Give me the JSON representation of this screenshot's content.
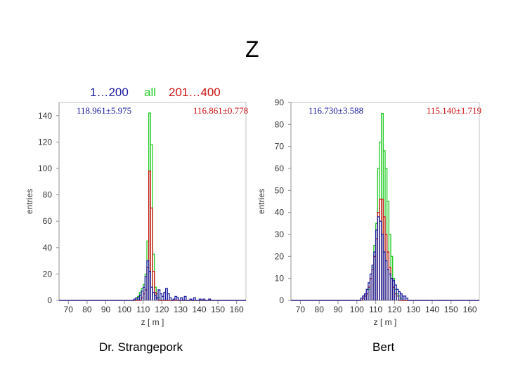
{
  "page": {
    "title": "Z"
  },
  "legend": {
    "blue": "1…200",
    "green": "all",
    "red": "201…400"
  },
  "colors": {
    "blue": "#1a1aa0",
    "green": "#22cc22",
    "red": "#cc1111",
    "axis": "#909090",
    "label": "#333333"
  },
  "chart_data": [
    {
      "type": "histogram",
      "caption": "Dr. Strangepork",
      "xlabel": "z [ m ]",
      "ylabel": "entries",
      "xlim": [
        65,
        165
      ],
      "ylim": [
        0,
        150
      ],
      "xticks": [
        70,
        80,
        90,
        100,
        110,
        120,
        130,
        140,
        150,
        160
      ],
      "yticks": [
        0,
        20,
        40,
        60,
        80,
        100,
        120,
        140
      ],
      "stats": {
        "left": "118.961±5.975",
        "right": "116.861±0.778"
      },
      "grid": false,
      "bin_width": 1,
      "series": [
        {
          "color_key": "green",
          "points": [
            [
              106,
              1
            ],
            [
              107,
              3
            ],
            [
              108,
              6
            ],
            [
              109,
              9
            ],
            [
              110,
              12
            ],
            [
              111,
              20
            ],
            [
              112,
              45
            ],
            [
              113,
              142
            ],
            [
              114,
              118
            ],
            [
              115,
              35
            ],
            [
              116,
              10
            ],
            [
              117,
              5
            ],
            [
              118,
              2
            ]
          ]
        },
        {
          "color_key": "red",
          "points": [
            [
              109,
              2
            ],
            [
              110,
              5
            ],
            [
              111,
              8
            ],
            [
              112,
              25
            ],
            [
              113,
              98
            ],
            [
              114,
              70
            ],
            [
              115,
              22
            ],
            [
              116,
              6
            ],
            [
              117,
              2
            ]
          ]
        },
        {
          "color_key": "blue",
          "points": [
            [
              105,
              1
            ],
            [
              106,
              2
            ],
            [
              107,
              2
            ],
            [
              108,
              4
            ],
            [
              109,
              7
            ],
            [
              110,
              10
            ],
            [
              111,
              18
            ],
            [
              112,
              30
            ],
            [
              113,
              22
            ],
            [
              114,
              10
            ],
            [
              115,
              6
            ],
            [
              116,
              4
            ],
            [
              117,
              2
            ],
            [
              118,
              8
            ],
            [
              119,
              5
            ],
            [
              120,
              3
            ],
            [
              121,
              6
            ],
            [
              122,
              9
            ],
            [
              123,
              5
            ],
            [
              124,
              2
            ],
            [
              126,
              1
            ],
            [
              127,
              3
            ],
            [
              128,
              2
            ],
            [
              130,
              2
            ],
            [
              132,
              3
            ],
            [
              135,
              1
            ],
            [
              137,
              2
            ],
            [
              140,
              1
            ],
            [
              142,
              1
            ],
            [
              145,
              1
            ]
          ]
        }
      ]
    },
    {
      "type": "histogram",
      "caption": "Bert",
      "xlabel": "z [ m ]",
      "ylabel": "entries",
      "xlim": [
        65,
        165
      ],
      "ylim": [
        0,
        90
      ],
      "xticks": [
        70,
        80,
        90,
        100,
        110,
        120,
        130,
        140,
        150,
        160
      ],
      "yticks": [
        0,
        10,
        20,
        30,
        40,
        50,
        60,
        70,
        80,
        90
      ],
      "stats": {
        "left": "116.730±3.588",
        "right": "115.140±1.719"
      },
      "grid": false,
      "bin_width": 1,
      "series": [
        {
          "color_key": "green",
          "points": [
            [
              102,
              1
            ],
            [
              103,
              1
            ],
            [
              104,
              2
            ],
            [
              105,
              3
            ],
            [
              106,
              5
            ],
            [
              107,
              10
            ],
            [
              108,
              15
            ],
            [
              109,
              25
            ],
            [
              110,
              35
            ],
            [
              111,
              60
            ],
            [
              112,
              72
            ],
            [
              113,
              85
            ],
            [
              114,
              68
            ],
            [
              115,
              60
            ],
            [
              116,
              45
            ],
            [
              117,
              30
            ],
            [
              118,
              20
            ],
            [
              119,
              10
            ],
            [
              120,
              5
            ],
            [
              121,
              3
            ],
            [
              122,
              2
            ],
            [
              123,
              1
            ]
          ]
        },
        {
          "color_key": "red",
          "points": [
            [
              103,
              1
            ],
            [
              104,
              2
            ],
            [
              105,
              3
            ],
            [
              106,
              6
            ],
            [
              107,
              10
            ],
            [
              108,
              14
            ],
            [
              109,
              20
            ],
            [
              110,
              28
            ],
            [
              111,
              40
            ],
            [
              112,
              46
            ],
            [
              113,
              46
            ],
            [
              114,
              38
            ],
            [
              115,
              30
            ],
            [
              116,
              22
            ],
            [
              117,
              15
            ],
            [
              118,
              10
            ],
            [
              119,
              6
            ],
            [
              120,
              3
            ],
            [
              121,
              2
            ]
          ]
        },
        {
          "color_key": "blue",
          "points": [
            [
              102,
              1
            ],
            [
              103,
              2
            ],
            [
              104,
              3
            ],
            [
              105,
              5
            ],
            [
              106,
              8
            ],
            [
              107,
              12
            ],
            [
              108,
              16
            ],
            [
              109,
              22
            ],
            [
              110,
              32
            ],
            [
              111,
              38
            ],
            [
              112,
              36
            ],
            [
              113,
              30
            ],
            [
              114,
              22
            ],
            [
              115,
              18
            ],
            [
              116,
              14
            ],
            [
              117,
              12
            ],
            [
              118,
              10
            ],
            [
              119,
              9
            ],
            [
              120,
              7
            ],
            [
              121,
              5
            ],
            [
              122,
              4
            ],
            [
              123,
              3
            ],
            [
              124,
              2
            ],
            [
              125,
              2
            ],
            [
              126,
              1
            ]
          ]
        }
      ]
    }
  ]
}
